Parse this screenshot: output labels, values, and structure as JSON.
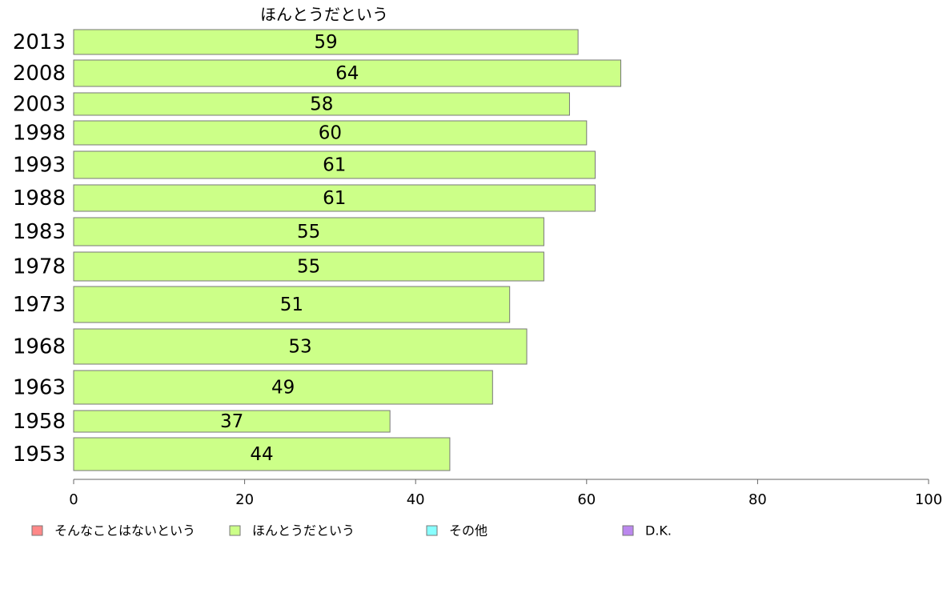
{
  "chart_data": {
    "type": "bar",
    "orientation": "horizontal",
    "title": "ほんとうだという",
    "categories": [
      "2013",
      "2008",
      "2003",
      "1998",
      "1993",
      "1988",
      "1983",
      "1978",
      "1973",
      "1968",
      "1963",
      "1958",
      "1953"
    ],
    "series": [
      {
        "name": "ほんとうだという",
        "color": "#ccff88",
        "values": [
          59,
          64,
          58,
          60,
          61,
          61,
          55,
          55,
          51,
          53,
          49,
          37,
          44
        ],
        "value_labels": [
          "59",
          "64",
          "58",
          "60",
          "61",
          "61",
          "55",
          "55",
          "51",
          "53",
          "49",
          "37",
          "44"
        ]
      }
    ],
    "xlim": [
      0,
      100
    ],
    "xticks": [
      "0",
      "20",
      "40",
      "60",
      "80",
      "100"
    ],
    "xlabel": "",
    "ylabel": "",
    "grid": false,
    "legend_position": "bottom",
    "legend": [
      {
        "label": "そんなことはないという",
        "color": "#ff8888"
      },
      {
        "label": "ほんとうだという",
        "color": "#ccff88"
      },
      {
        "label": "その他",
        "color": "#88ffff"
      },
      {
        "label": "D.K.",
        "color": "#bb88ee"
      }
    ]
  }
}
